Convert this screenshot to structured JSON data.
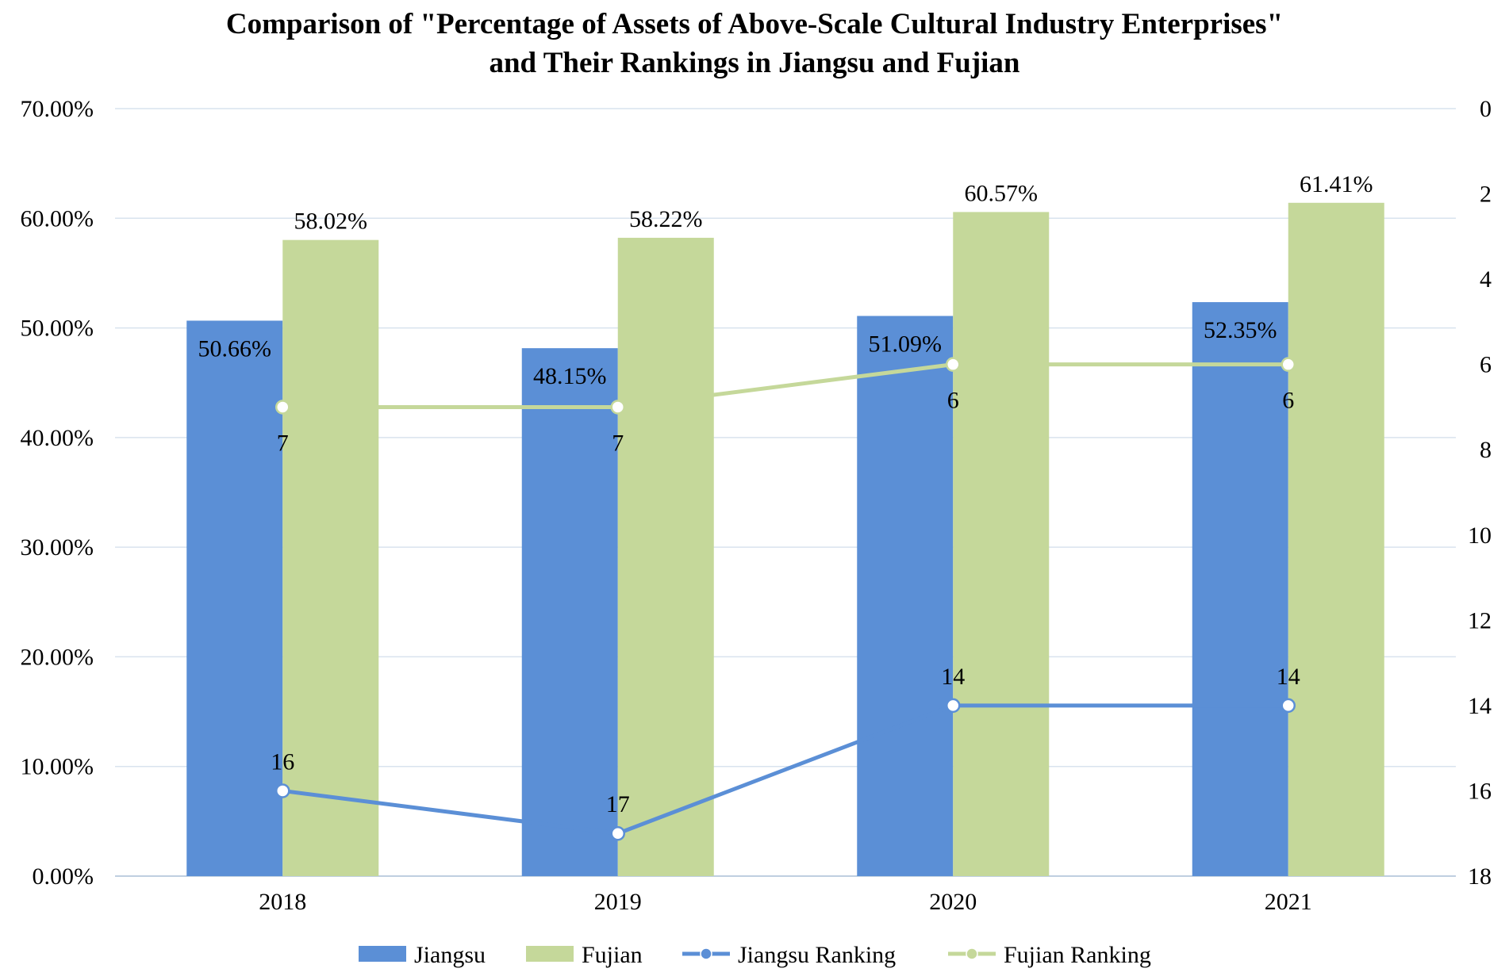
{
  "chart_data": {
    "type": "bar+line",
    "title_line1": "Comparison of \"Percentage of Assets of Above-Scale Cultural Industry Enterprises\"",
    "title_line2": "and Their Rankings in Jiangsu and Fujian",
    "categories": [
      "2018",
      "2019",
      "2020",
      "2021"
    ],
    "bar_series": [
      {
        "name": "Jiangsu",
        "color": "#5B8FD6",
        "values": [
          50.66,
          48.15,
          51.09,
          52.35
        ],
        "labels": [
          "50.66%",
          "48.15%",
          "51.09%",
          "52.35%"
        ]
      },
      {
        "name": "Fujian",
        "color": "#C5D89A",
        "values": [
          58.02,
          58.22,
          60.57,
          61.41
        ],
        "labels": [
          "58.02%",
          "58.22%",
          "60.57%",
          "61.41%"
        ]
      }
    ],
    "line_series": [
      {
        "name": "Jiangsu Ranking",
        "color": "#5B8FD6",
        "values": [
          16,
          17,
          14,
          14
        ],
        "labels": [
          "16",
          "17",
          "14",
          "14"
        ]
      },
      {
        "name": "Fujian Ranking",
        "color": "#C5D89A",
        "values": [
          7,
          7,
          6,
          6
        ],
        "labels": [
          "7",
          "7",
          "6",
          "6"
        ]
      }
    ],
    "y_left": {
      "min": 0,
      "max": 70,
      "ticks": [
        "0.00%",
        "10.00%",
        "20.00%",
        "30.00%",
        "40.00%",
        "50.00%",
        "60.00%",
        "70.00%"
      ]
    },
    "y_right": {
      "min": 0,
      "max": 18,
      "inverted": true,
      "ticks": [
        "0",
        "2",
        "4",
        "6",
        "8",
        "10",
        "12",
        "14",
        "16",
        "18"
      ]
    },
    "grid": true,
    "legend_position": "bottom",
    "legend": [
      "Jiangsu",
      "Fujian",
      "Jiangsu Ranking",
      "Fujian Ranking"
    ]
  }
}
